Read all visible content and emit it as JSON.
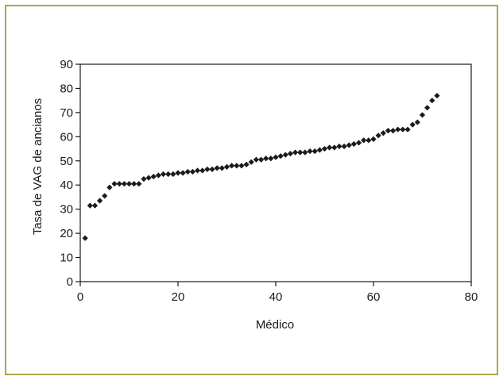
{
  "chart_data": {
    "type": "scatter",
    "title": "",
    "xlabel": "Médico",
    "ylabel": "Tasa de VAG de ancianos",
    "xlim": [
      0,
      80
    ],
    "ylim": [
      0,
      90
    ],
    "xticks": [
      "0",
      "20",
      "40",
      "60",
      "80"
    ],
    "yticks": [
      "0",
      "10",
      "20",
      "30",
      "40",
      "50",
      "60",
      "70",
      "80",
      "90"
    ],
    "grid": false,
    "legend": "none",
    "marker_color": "#1a1a1a",
    "series": [
      {
        "marker": "diamond",
        "points": [
          [
            1,
            18
          ],
          [
            2,
            31.5
          ],
          [
            3,
            31.5
          ],
          [
            4,
            33.5
          ],
          [
            5,
            35.5
          ],
          [
            6,
            39
          ],
          [
            7,
            40.5
          ],
          [
            8,
            40.5
          ],
          [
            9,
            40.5
          ],
          [
            10,
            40.5
          ],
          [
            11,
            40.5
          ],
          [
            12,
            40.5
          ],
          [
            13,
            42.5
          ],
          [
            14,
            43
          ],
          [
            15,
            43.5
          ],
          [
            16,
            44
          ],
          [
            17,
            44.5
          ],
          [
            18,
            44.5
          ],
          [
            19,
            44.5
          ],
          [
            20,
            45
          ],
          [
            21,
            45
          ],
          [
            22,
            45.5
          ],
          [
            23,
            45.5
          ],
          [
            24,
            46
          ],
          [
            25,
            46
          ],
          [
            26,
            46.5
          ],
          [
            27,
            46.5
          ],
          [
            28,
            47
          ],
          [
            29,
            47
          ],
          [
            30,
            47.5
          ],
          [
            31,
            48
          ],
          [
            32,
            48
          ],
          [
            33,
            48
          ],
          [
            34,
            48.5
          ],
          [
            35,
            49.5
          ],
          [
            36,
            50.5
          ],
          [
            37,
            50.5
          ],
          [
            38,
            51
          ],
          [
            39,
            51
          ],
          [
            40,
            51.5
          ],
          [
            41,
            52
          ],
          [
            42,
            52.5
          ],
          [
            43,
            53
          ],
          [
            44,
            53.5
          ],
          [
            45,
            53.5
          ],
          [
            46,
            53.5
          ],
          [
            47,
            54
          ],
          [
            48,
            54
          ],
          [
            49,
            54.5
          ],
          [
            50,
            55
          ],
          [
            51,
            55.5
          ],
          [
            52,
            55.5
          ],
          [
            53,
            56
          ],
          [
            54,
            56
          ],
          [
            55,
            56.5
          ],
          [
            56,
            57
          ],
          [
            57,
            57.5
          ],
          [
            58,
            58.5
          ],
          [
            59,
            58.5
          ],
          [
            60,
            59
          ],
          [
            61,
            60.5
          ],
          [
            62,
            61.5
          ],
          [
            63,
            62.5
          ],
          [
            64,
            62.5
          ],
          [
            65,
            63
          ],
          [
            66,
            63
          ],
          [
            67,
            63
          ],
          [
            68,
            65
          ],
          [
            69,
            66
          ],
          [
            70,
            69
          ],
          [
            71,
            72
          ],
          [
            72,
            75
          ],
          [
            73,
            77
          ]
        ]
      }
    ]
  }
}
